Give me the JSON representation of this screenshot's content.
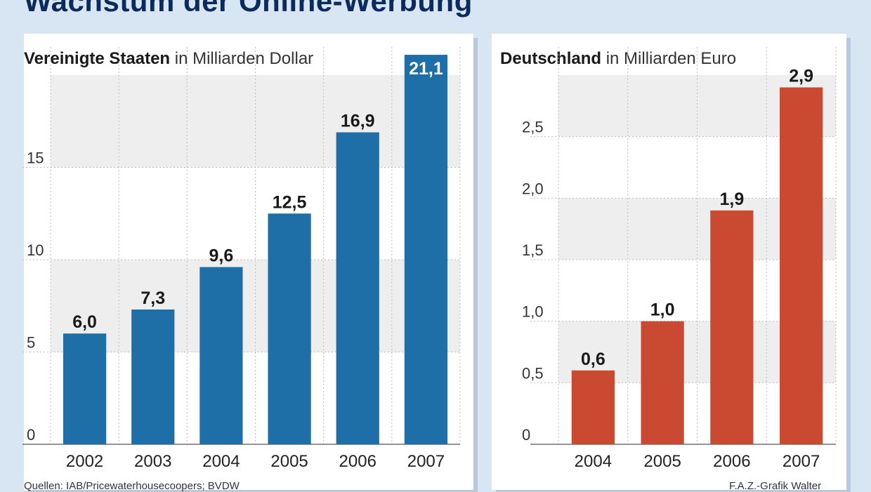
{
  "page": {
    "title": "Wachstum der Online-Werbung"
  },
  "colors": {
    "us_bar": "#1e6ea8",
    "de_bar": "#c94a31",
    "band": "#eeeeee",
    "gridline": "#bdbdbd",
    "text": "#1a1a1a"
  },
  "chart_data": [
    {
      "type": "bar",
      "title": "Vereinigte Staaten",
      "unit": "in Milliarden Dollar",
      "categories": [
        "2002",
        "2003",
        "2004",
        "2005",
        "2006",
        "2007"
      ],
      "values": [
        6.0,
        7.3,
        9.6,
        12.5,
        16.9,
        21.1
      ],
      "value_labels": [
        "6,0",
        "7,3",
        "9,6",
        "12,5",
        "16,9",
        "21,1"
      ],
      "yticks": [
        0,
        5,
        10,
        15
      ],
      "ytick_labels": [
        "0",
        "5",
        "10",
        "15"
      ],
      "ylim": [
        0,
        20
      ],
      "grid": true
    },
    {
      "type": "bar",
      "title": "Deutschland",
      "unit": "in Milliarden Euro",
      "categories": [
        "2004",
        "2005",
        "2006",
        "2007"
      ],
      "values": [
        0.6,
        1.0,
        1.9,
        2.9
      ],
      "value_labels": [
        "0,6",
        "1,0",
        "1,9",
        "2,9"
      ],
      "yticks": [
        0,
        0.5,
        1.0,
        1.5,
        2.0,
        2.5
      ],
      "ytick_labels": [
        "0",
        "0,5",
        "1,0",
        "1,5",
        "2,0",
        "2,5"
      ],
      "ylim": [
        0,
        3.0
      ],
      "grid": true
    }
  ],
  "footer": {
    "source": "Quellen: IAB/Pricewaterhousecoopers; BVDW",
    "credit": "F.A.Z.-Grafik Walter"
  }
}
